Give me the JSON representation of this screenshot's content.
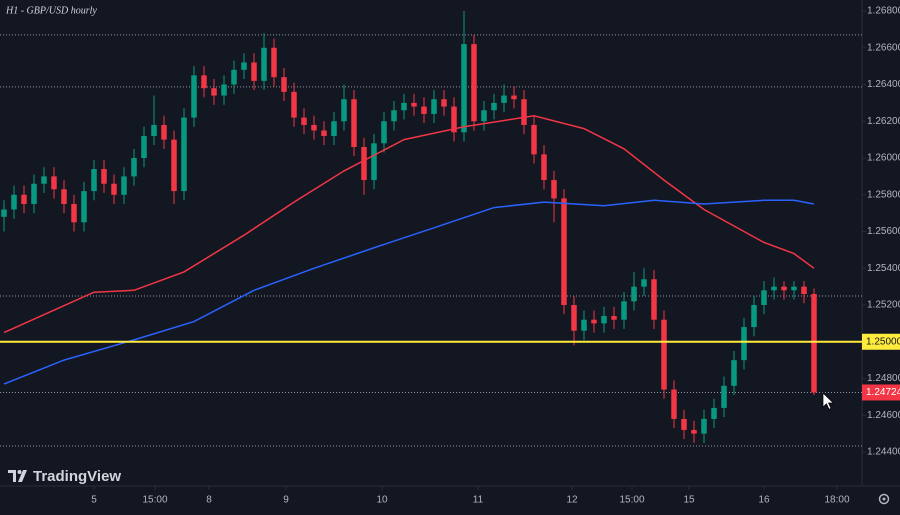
{
  "chart_data": {
    "type": "candlestick",
    "title": "H1 - GBP/USD hourly",
    "watermark": "TradingView",
    "up_color": "#089981",
    "down_color": "#f23645",
    "open": [
      1.2568,
      1.2572,
      1.258,
      1.2575,
      1.2586,
      1.259,
      1.2583,
      1.2575,
      1.2565,
      1.2582,
      1.2594,
      1.2586,
      1.258,
      1.259,
      1.26,
      1.2612,
      1.2618,
      1.261,
      1.2582,
      1.2622,
      1.2645,
      1.2638,
      1.2634,
      1.264,
      1.2648,
      1.2652,
      1.2642,
      1.266,
      1.2644,
      1.2636,
      1.2622,
      1.2618,
      1.2615,
      1.2612,
      1.262,
      1.2632,
      1.2606,
      1.2588,
      1.2608,
      1.262,
      1.2626,
      1.263,
      1.2628,
      1.2624,
      1.2632,
      1.2628,
      1.2614,
      1.2662,
      1.262,
      1.2626,
      1.263,
      1.2634,
      1.2632,
      1.2618,
      1.2602,
      1.2588,
      1.2578,
      1.252,
      1.2506,
      1.2512,
      1.251,
      1.2514,
      1.2512,
      1.2522,
      1.253,
      1.2534,
      1.2512,
      1.2474,
      1.2458,
      1.2452,
      1.245,
      1.2458,
      1.2464,
      1.2476,
      1.249,
      1.2508,
      1.252,
      1.2528,
      1.253,
      1.2528,
      1.253,
      1.2526
    ],
    "high": [
      1.2577,
      1.2585,
      1.2585,
      1.2591,
      1.2595,
      1.2595,
      1.2588,
      1.258,
      1.2587,
      1.2599,
      1.2599,
      1.2591,
      1.2595,
      1.2605,
      1.2617,
      1.2634,
      1.2623,
      1.2615,
      1.2627,
      1.265,
      1.265,
      1.2643,
      1.2645,
      1.2653,
      1.2657,
      1.2657,
      1.2668,
      1.2665,
      1.2649,
      1.2641,
      1.2627,
      1.2623,
      1.262,
      1.2625,
      1.264,
      1.2637,
      1.2611,
      1.2613,
      1.2625,
      1.2631,
      1.2635,
      1.2635,
      1.2633,
      1.2637,
      1.2637,
      1.2633,
      1.268,
      1.2667,
      1.2631,
      1.2635,
      1.264,
      1.2639,
      1.2637,
      1.2623,
      1.2607,
      1.2593,
      1.2583,
      1.2525,
      1.2517,
      1.2517,
      1.2519,
      1.2519,
      1.2527,
      1.2538,
      1.254,
      1.2539,
      1.2517,
      1.2479,
      1.2463,
      1.2457,
      1.2463,
      1.2469,
      1.2481,
      1.2495,
      1.2513,
      1.2525,
      1.2533,
      1.2535,
      1.2533,
      1.2533,
      1.2533,
      1.2529
    ],
    "low": [
      1.256,
      1.2567,
      1.257,
      1.257,
      1.2581,
      1.2578,
      1.257,
      1.256,
      1.256,
      1.2577,
      1.2581,
      1.2575,
      1.2575,
      1.2585,
      1.2595,
      1.2607,
      1.2605,
      1.2575,
      1.2577,
      1.2617,
      1.2633,
      1.2629,
      1.2629,
      1.2635,
      1.2643,
      1.2637,
      1.2637,
      1.2639,
      1.2631,
      1.2617,
      1.2613,
      1.261,
      1.2607,
      1.2607,
      1.2615,
      1.2601,
      1.258,
      1.2583,
      1.2603,
      1.2615,
      1.2621,
      1.2623,
      1.2619,
      1.2619,
      1.2623,
      1.2609,
      1.2609,
      1.2615,
      1.2615,
      1.2621,
      1.2625,
      1.2627,
      1.2613,
      1.2597,
      1.2583,
      1.2565,
      1.2515,
      1.2498,
      1.2501,
      1.2505,
      1.2505,
      1.2507,
      1.2507,
      1.2517,
      1.2525,
      1.2507,
      1.2469,
      1.2453,
      1.2447,
      1.2445,
      1.2445,
      1.2453,
      1.2459,
      1.2471,
      1.2485,
      1.2503,
      1.2515,
      1.2523,
      1.2523,
      1.2523,
      1.2521,
      1.2471
    ],
    "close": [
      1.2572,
      1.258,
      1.2575,
      1.2586,
      1.259,
      1.2583,
      1.2575,
      1.2565,
      1.2582,
      1.2594,
      1.2586,
      1.258,
      1.259,
      1.26,
      1.2612,
      1.2618,
      1.261,
      1.2582,
      1.2622,
      1.2645,
      1.2638,
      1.2634,
      1.264,
      1.2648,
      1.2652,
      1.2642,
      1.266,
      1.2644,
      1.2636,
      1.2622,
      1.2618,
      1.2615,
      1.2612,
      1.262,
      1.2632,
      1.2606,
      1.2588,
      1.2608,
      1.262,
      1.2626,
      1.263,
      1.2628,
      1.2624,
      1.2632,
      1.2628,
      1.2614,
      1.2662,
      1.262,
      1.2626,
      1.263,
      1.2634,
      1.2632,
      1.2618,
      1.2602,
      1.2588,
      1.2578,
      1.252,
      1.2506,
      1.2512,
      1.251,
      1.2514,
      1.2512,
      1.2522,
      1.253,
      1.2534,
      1.2512,
      1.2474,
      1.2458,
      1.2452,
      1.245,
      1.2458,
      1.2464,
      1.2476,
      1.249,
      1.2508,
      1.252,
      1.2528,
      1.253,
      1.2528,
      1.253,
      1.2526,
      1.24724
    ],
    "series": [
      {
        "color": "#f23645",
        "x": [
          0,
          9,
          13,
          18,
          24,
          29,
          34,
          40,
          46,
          53,
          58,
          62,
          66,
          70,
          76,
          79,
          81
        ],
        "values": [
          1.2505,
          1.2527,
          1.2528,
          1.2538,
          1.2558,
          1.2576,
          1.2593,
          1.261,
          1.2617,
          1.2623,
          1.2616,
          1.2605,
          1.2588,
          1.2572,
          1.2554,
          1.2548,
          1.254
        ]
      },
      {
        "color": "#2962ff",
        "x": [
          0,
          6,
          13,
          19,
          25,
          31,
          38,
          43,
          49,
          54,
          60,
          65,
          70,
          76,
          79,
          81
        ],
        "values": [
          1.2477,
          1.249,
          1.2501,
          1.2511,
          1.2528,
          1.254,
          1.2553,
          1.2562,
          1.2573,
          1.2576,
          1.2574,
          1.2577,
          1.2575,
          1.2577,
          1.2577,
          1.2575
        ]
      }
    ],
    "levels": [
      1.2667,
      1.26387,
      1.25249,
      1.24433
    ],
    "key_level": {
      "value": 1.25,
      "label": "1.25000",
      "color": "#ffeb3b"
    },
    "last_price": 1.24724,
    "xlim": [
      -0.4,
      85.8
    ],
    "ylim": [
      1.24215,
      1.2686
    ],
    "xticks": [
      {
        "value": 9,
        "label": "5"
      },
      {
        "value": 15.1,
        "label": "15:00"
      },
      {
        "value": 20.5,
        "label": "8"
      },
      {
        "value": 28.2,
        "label": "9"
      },
      {
        "value": 37.8,
        "label": "10"
      },
      {
        "value": 47.4,
        "label": "11"
      },
      {
        "value": 56.8,
        "label": "12"
      },
      {
        "value": 62.8,
        "label": "15:00"
      },
      {
        "value": 68.5,
        "label": "15"
      },
      {
        "value": 76,
        "label": "16"
      },
      {
        "value": 83.3,
        "label": "18:00"
      }
    ],
    "yticks": [
      {
        "value": 1.244,
        "label": "1.24400"
      },
      {
        "value": 1.246,
        "label": "1.24600"
      },
      {
        "value": 1.248,
        "label": "1.24800"
      },
      {
        "value": 1.252,
        "label": "1.25200"
      },
      {
        "value": 1.254,
        "label": "1.25400"
      },
      {
        "value": 1.256,
        "label": "1.25600"
      },
      {
        "value": 1.258,
        "label": "1.25800"
      },
      {
        "value": 1.26,
        "label": "1.26000"
      },
      {
        "value": 1.262,
        "label": "1.26200"
      },
      {
        "value": 1.264,
        "label": "1.26400"
      },
      {
        "value": 1.266,
        "label": "1.26600"
      },
      {
        "value": 1.268,
        "label": "1.26800"
      }
    ],
    "grid": false
  }
}
